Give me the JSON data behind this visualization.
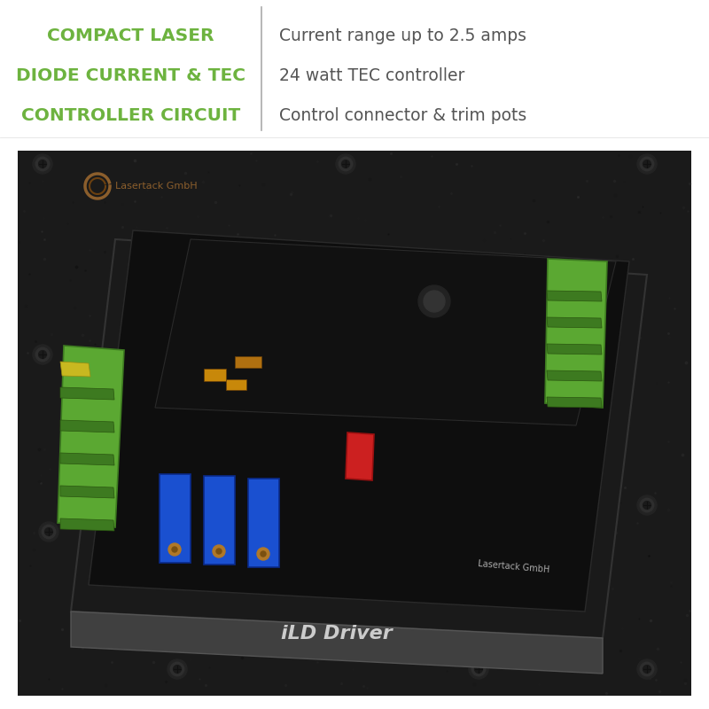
{
  "bg_color": "#ffffff",
  "left_title_lines": [
    "COMPACT LASER",
    "DIODE CURRENT & TEC",
    "CONTROLLER CIRCUIT"
  ],
  "left_title_color": "#6db33f",
  "divider_color": "#aaaaaa",
  "right_bullets": [
    "Current range up to 2.5 amps",
    "24 watt TEC controller",
    "Control connector & trim pots"
  ],
  "right_text_color": "#555555",
  "fig_width": 8.0,
  "fig_height": 8.0,
  "title_fontsize": 14.5,
  "bullet_fontsize": 13.5,
  "logo_text": "Lasertack GmbH",
  "board_label": "iLD Driver"
}
